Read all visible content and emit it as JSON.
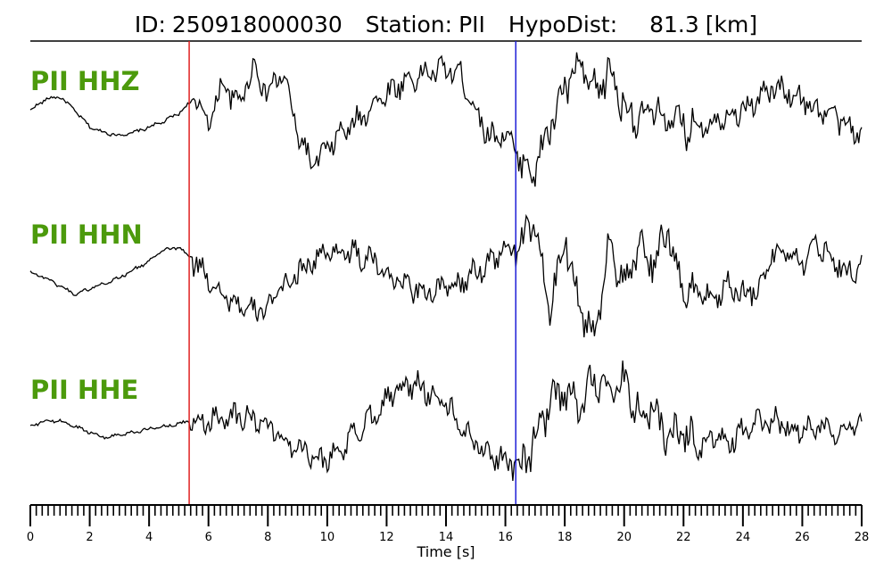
{
  "title": {
    "id_label": "ID:",
    "id_value": "250918000030",
    "station_label": "Station:",
    "station_value": "PII",
    "hypodist_label": "HypoDist:",
    "hypodist_value": "81.3",
    "hypodist_unit": "[km]"
  },
  "colors": {
    "trace": "#000000",
    "label": "#4c9a0c",
    "p_pick": "#e02020",
    "s_pick": "#1f1fd8"
  },
  "chart_data": {
    "type": "line",
    "xlabel": "Time [s]",
    "xlim": [
      0,
      28
    ],
    "x_major_ticks": [
      0,
      2,
      4,
      6,
      8,
      10,
      12,
      14,
      16,
      18,
      20,
      22,
      24,
      26,
      28
    ],
    "x_tick_labels": [
      "0",
      "2",
      "4",
      "6",
      "8",
      "10",
      "12",
      "14",
      "16",
      "18",
      "20",
      "22",
      "24",
      "26",
      "28"
    ],
    "x_minor_step": 0.2,
    "picks": [
      {
        "phase": "P",
        "time": 5.35,
        "color": "#e02020"
      },
      {
        "phase": "S",
        "time": 16.35,
        "color": "#1f1fd8"
      }
    ],
    "series": [
      {
        "name": "PII HHZ",
        "x": [
          0,
          0.5,
          1,
          1.5,
          2,
          2.5,
          3,
          3.5,
          4,
          4.5,
          5,
          5.5,
          6,
          6.5,
          7,
          7.5,
          8,
          8.5,
          9,
          9.5,
          10,
          10.5,
          11,
          11.5,
          12,
          12.5,
          13,
          13.5,
          14,
          14.5,
          15,
          15.5,
          16,
          16.5,
          17,
          17.5,
          18,
          18.5,
          19,
          19.5,
          20,
          20.5,
          21,
          21.5,
          22,
          22.5,
          23,
          23.5,
          24,
          24.5,
          25,
          25.5,
          26,
          26.5,
          27,
          27.5,
          28
        ],
        "y": [
          0.1,
          0.3,
          0.35,
          0.1,
          -0.2,
          -0.3,
          -0.35,
          -0.3,
          -0.2,
          -0.1,
          0.05,
          0.3,
          -0.1,
          0.6,
          0.2,
          0.9,
          0.4,
          0.8,
          -0.3,
          -0.9,
          -0.6,
          -0.3,
          -0.1,
          0.2,
          0.4,
          0.6,
          0.7,
          0.8,
          0.85,
          0.75,
          0.1,
          -0.4,
          -0.3,
          -0.8,
          -1.0,
          -0.2,
          0.5,
          0.9,
          0.4,
          0.8,
          0.2,
          -0.1,
          0.1,
          -0.1,
          -0.2,
          -0.15,
          -0.1,
          0.05,
          0.1,
          0.3,
          0.5,
          0.45,
          0.3,
          0.1,
          0.05,
          -0.2,
          -0.35
        ]
      },
      {
        "name": "PII HHN",
        "x": [
          0,
          0.5,
          1,
          1.5,
          2,
          2.5,
          3,
          3.5,
          4,
          4.5,
          5,
          5.5,
          6,
          6.5,
          7,
          7.5,
          8,
          8.5,
          9,
          9.5,
          10,
          10.5,
          11,
          11.5,
          12,
          12.5,
          13,
          13.5,
          14,
          14.5,
          15,
          15.5,
          16,
          16.5,
          17,
          17.5,
          18,
          18.5,
          19,
          19.5,
          20,
          20.5,
          21,
          21.5,
          22,
          22.5,
          23,
          23.5,
          24,
          24.5,
          25,
          25.5,
          26,
          26.5,
          27,
          27.5,
          28
        ],
        "y": [
          0.0,
          -0.1,
          -0.25,
          -0.4,
          -0.3,
          -0.2,
          -0.1,
          0.05,
          0.2,
          0.4,
          0.45,
          0.2,
          -0.1,
          -0.4,
          -0.6,
          -0.75,
          -0.6,
          -0.3,
          0.0,
          0.2,
          0.35,
          0.4,
          0.3,
          0.2,
          0.0,
          -0.2,
          -0.3,
          -0.35,
          -0.3,
          -0.2,
          0.0,
          0.2,
          0.4,
          0.5,
          0.9,
          -0.8,
          0.7,
          -0.6,
          -1.2,
          0.6,
          -0.3,
          0.4,
          0.2,
          0.7,
          -0.4,
          -0.3,
          -0.5,
          -0.2,
          -0.4,
          -0.3,
          0.3,
          0.4,
          0.2,
          0.5,
          0.3,
          0.0,
          0.1
        ]
      },
      {
        "name": "PII HHE",
        "x": [
          0,
          0.5,
          1,
          1.5,
          2,
          2.5,
          3,
          3.5,
          4,
          4.5,
          5,
          5.5,
          6,
          6.5,
          7,
          7.5,
          8,
          8.5,
          9,
          9.5,
          10,
          10.5,
          11,
          11.5,
          12,
          12.5,
          13,
          13.5,
          14,
          14.5,
          15,
          15.5,
          16,
          16.5,
          17,
          17.5,
          18,
          18.5,
          19,
          19.5,
          20,
          20.5,
          21,
          21.5,
          22,
          22.5,
          23,
          23.5,
          24,
          24.5,
          25,
          25.5,
          26,
          26.5,
          27,
          27.5,
          28
        ],
        "y": [
          0.0,
          0.1,
          0.1,
          0.0,
          -0.1,
          -0.2,
          -0.15,
          -0.1,
          -0.05,
          0.0,
          0.05,
          0.1,
          0.1,
          0.2,
          0.2,
          0.15,
          0.0,
          -0.2,
          -0.35,
          -0.5,
          -0.6,
          -0.4,
          -0.1,
          0.2,
          0.5,
          0.7,
          0.75,
          0.6,
          0.4,
          0.0,
          -0.3,
          -0.5,
          -0.6,
          -0.8,
          -0.2,
          0.4,
          0.6,
          0.3,
          1.0,
          0.5,
          0.8,
          0.2,
          0.3,
          -0.2,
          -0.1,
          -0.4,
          -0.2,
          -0.3,
          -0.1,
          0.05,
          0.1,
          0.0,
          -0.1,
          0.05,
          -0.05,
          0.0,
          0.1
        ]
      }
    ]
  }
}
